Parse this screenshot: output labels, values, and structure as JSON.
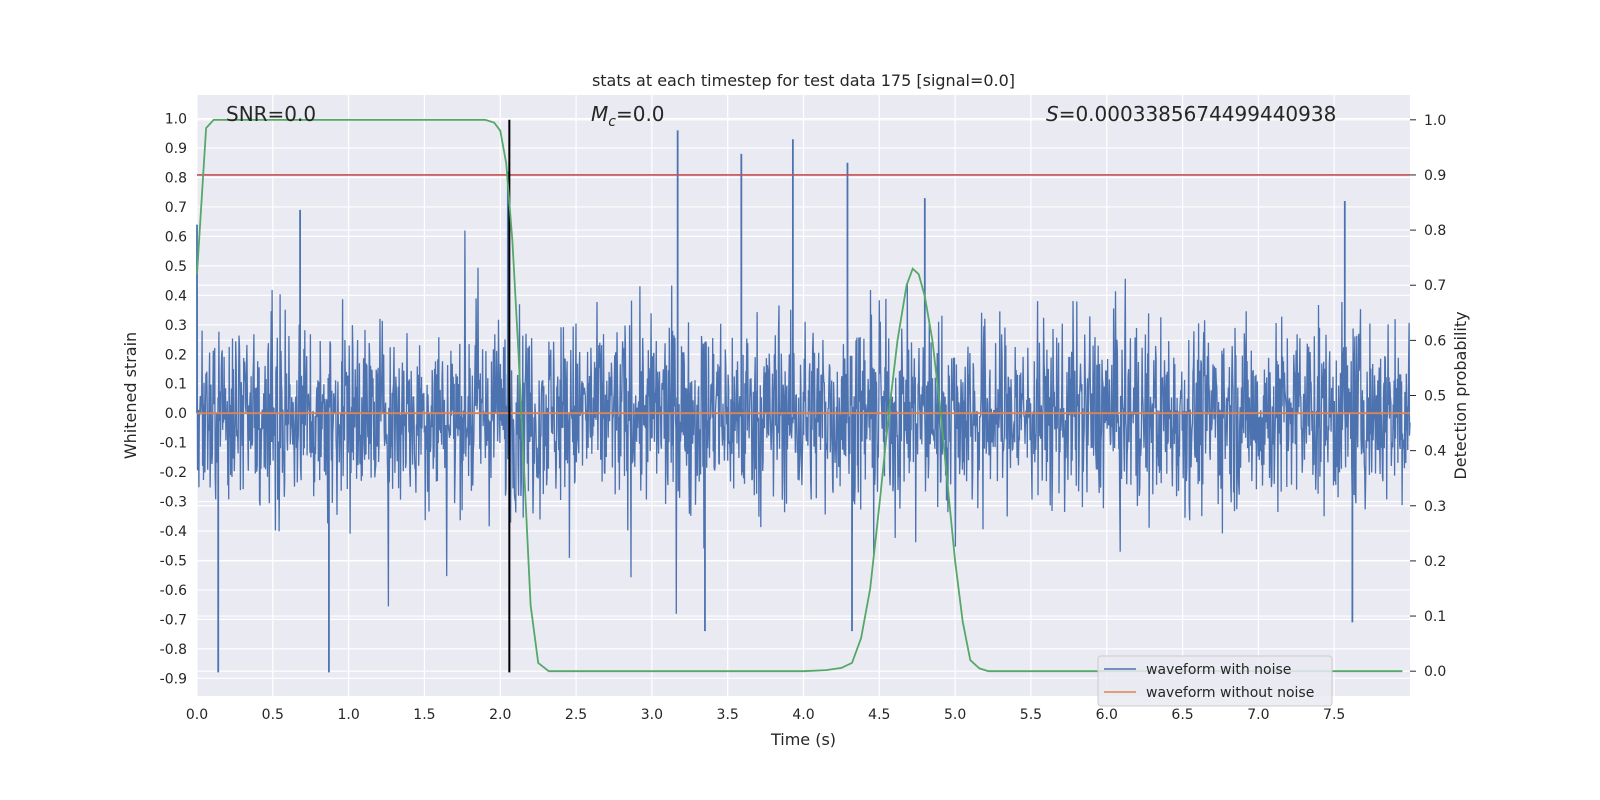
{
  "chart_data": {
    "type": "line",
    "title": "stats at each timestep for test data 175 [signal=0.0]",
    "xlabel": "Time (s)",
    "ylabel": "Whitened strain",
    "ylabel_right": "Detection probability",
    "xlim": [
      0.0,
      8.0
    ],
    "ylim": [
      -0.96,
      1.08
    ],
    "ylim_right": [
      -0.045,
      1.045
    ],
    "x_ticks": [
      "0.0",
      "0.5",
      "1.0",
      "1.5",
      "2.0",
      "2.5",
      "3.0",
      "3.5",
      "4.0",
      "4.5",
      "5.0",
      "5.5",
      "6.0",
      "6.5",
      "7.0",
      "7.5"
    ],
    "y_ticks": [
      "1.0",
      "0.9",
      "0.8",
      "0.7",
      "0.6",
      "0.5",
      "0.4",
      "0.3",
      "0.2",
      "0.1",
      "0.0",
      "-0.1",
      "-0.2",
      "-0.3",
      "-0.4",
      "-0.5",
      "-0.6",
      "-0.7",
      "-0.8",
      "-0.9"
    ],
    "y_ticks_right": [
      "1.0",
      "0.9",
      "0.8",
      "0.7",
      "0.6",
      "0.5",
      "0.4",
      "0.3",
      "0.2",
      "0.1",
      "0.0"
    ],
    "grid": true,
    "legend_position": "bottom-right",
    "annotations": {
      "snr": "SNR=0.0",
      "mc_symbol": "M",
      "mc_sub": "c",
      "mc_value": "=0.0",
      "s_symbol": "S",
      "s_value": "=0.0003385674499440938"
    },
    "series": [
      {
        "name": "waveform with noise",
        "color": "#4c72b0",
        "axis": "left",
        "description_kind": "noise",
        "envelope_typical": 0.3,
        "peaks": [
          {
            "x": 0.0,
            "y": 0.64
          },
          {
            "x": 0.14,
            "y": -0.88
          },
          {
            "x": 0.68,
            "y": 0.69
          },
          {
            "x": 0.87,
            "y": -0.88
          },
          {
            "x": 2.05,
            "y": 0.82
          },
          {
            "x": 3.17,
            "y": 0.96
          },
          {
            "x": 3.59,
            "y": 0.88
          },
          {
            "x": 3.93,
            "y": 0.93
          },
          {
            "x": 4.29,
            "y": 0.85
          },
          {
            "x": 3.35,
            "y": -0.74
          },
          {
            "x": 4.32,
            "y": -0.74
          },
          {
            "x": 7.62,
            "y": -0.71
          },
          {
            "x": 4.8,
            "y": 0.73
          },
          {
            "x": 7.57,
            "y": 0.72
          }
        ]
      },
      {
        "name": "waveform without noise",
        "color": "#dd8452",
        "axis": "left",
        "x": [
          0.0,
          8.0
        ],
        "y": [
          0.0,
          0.0
        ]
      },
      {
        "name": "",
        "color": "#55a868",
        "axis": "right",
        "x": [
          0.0,
          0.06,
          0.11,
          0.2,
          1.9,
          1.96,
          2.0,
          2.04,
          2.08,
          2.12,
          2.16,
          2.2,
          2.25,
          2.32,
          2.4,
          2.6,
          4.0,
          4.15,
          4.25,
          4.32,
          4.38,
          4.44,
          4.5,
          4.56,
          4.62,
          4.68,
          4.72,
          4.76,
          4.8,
          4.85,
          4.9,
          4.95,
          5.0,
          5.05,
          5.1,
          5.16,
          5.22,
          5.3,
          5.4,
          7.95
        ],
        "y": [
          0.72,
          0.985,
          1.0,
          1.0,
          1.0,
          0.995,
          0.98,
          0.92,
          0.78,
          0.58,
          0.35,
          0.12,
          0.015,
          0.0,
          0.0,
          0.0,
          0.0,
          0.002,
          0.006,
          0.015,
          0.06,
          0.15,
          0.3,
          0.46,
          0.6,
          0.7,
          0.73,
          0.72,
          0.68,
          0.6,
          0.48,
          0.34,
          0.2,
          0.09,
          0.02,
          0.005,
          0.0,
          0.0,
          0.0,
          0.0
        ]
      },
      {
        "name": "",
        "color": "#c44e52",
        "axis": "right",
        "x": [
          0.0,
          8.0
        ],
        "y": [
          0.9,
          0.9
        ]
      }
    ],
    "vline": {
      "x": 2.06,
      "color": "#000000",
      "y0": -0.88,
      "y1": 1.0
    }
  },
  "legend": [
    {
      "label": "waveform with noise",
      "color": "#4c72b0"
    },
    {
      "label": "waveform without noise",
      "color": "#dd8452"
    }
  ]
}
